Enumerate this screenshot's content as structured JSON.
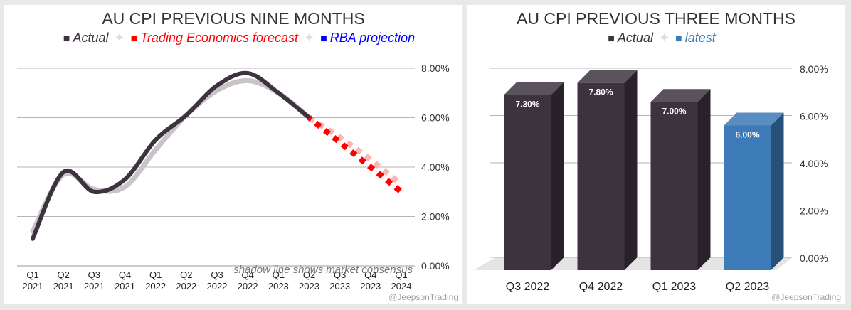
{
  "watermark": "@JeepsonTrading",
  "chart_data": [
    {
      "type": "line",
      "title": "AU CPI PREVIOUS NINE MONTHS",
      "legend": [
        {
          "marker": "■",
          "label": "Actual",
          "color": "#3d333f"
        },
        {
          "marker": "■",
          "label": "Trading Economics forecast",
          "color": "#ff0000"
        },
        {
          "marker": "■",
          "label": "RBA projection",
          "color": "#0000ff"
        }
      ],
      "legend_separator": "✦",
      "legend_position": "top",
      "categories": [
        [
          "Q1",
          "2021"
        ],
        [
          "Q2",
          "2021"
        ],
        [
          "Q3",
          "2021"
        ],
        [
          "Q4",
          "2021"
        ],
        [
          "Q1",
          "2022"
        ],
        [
          "Q2",
          "2022"
        ],
        [
          "Q3",
          "2022"
        ],
        [
          "Q4",
          "2022"
        ],
        [
          "Q1",
          "2023"
        ],
        [
          "Q2",
          "2023"
        ],
        [
          "Q3",
          "2023"
        ],
        [
          "Q4",
          "2023"
        ],
        [
          "Q1",
          "2024"
        ]
      ],
      "ylim": [
        0,
        8
      ],
      "yticks": [
        "0.00%",
        "2.00%",
        "4.00%",
        "6.00%",
        "8.00%"
      ],
      "grid": true,
      "series": [
        {
          "name": "Actual",
          "color": "#3d333f",
          "style": "solid",
          "values": [
            1.1,
            3.8,
            3.0,
            3.5,
            5.1,
            6.1,
            7.3,
            7.8,
            7.0,
            6.0,
            null,
            null,
            null
          ]
        },
        {
          "name": "Trading Economics forecast",
          "color": "#ff0000",
          "style": "dotted",
          "values": [
            null,
            null,
            null,
            null,
            null,
            null,
            null,
            null,
            null,
            6.0,
            5.0,
            4.0,
            3.0
          ]
        }
      ],
      "consensus_series": {
        "color": "#c8c4c8",
        "values": [
          1.4,
          3.7,
          3.1,
          3.2,
          4.7,
          6.1,
          7.1,
          7.5,
          7.0,
          6.0,
          5.2,
          4.3,
          3.3
        ]
      },
      "consensus_forecast_color": "#ffb3b3",
      "annotation": "shadow line shows market consensus"
    },
    {
      "type": "bar",
      "title": "AU CPI PREVIOUS THREE MONTHS",
      "legend": [
        {
          "marker": "■",
          "label": "Actual",
          "color": "#3d333f"
        },
        {
          "marker": "■",
          "label": "latest",
          "color": "#3d7ab8"
        }
      ],
      "legend_separator": "✦",
      "legend_position": "top",
      "categories": [
        "Q3 2022",
        "Q4 2022",
        "Q1 2023",
        "Q2 2023"
      ],
      "values": [
        7.3,
        7.8,
        7.0,
        6.0
      ],
      "value_labels": [
        "7.30%",
        "7.80%",
        "7.00%",
        "6.00%"
      ],
      "colors": [
        "#3d333f",
        "#3d333f",
        "#3d333f",
        "#3d7ab8"
      ],
      "ylim": [
        0,
        8
      ],
      "yticks": [
        "0.00%",
        "2.00%",
        "4.00%",
        "6.00%",
        "8.00%"
      ],
      "grid": true
    }
  ]
}
